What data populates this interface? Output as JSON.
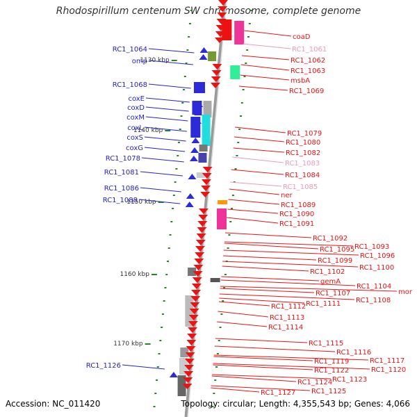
{
  "title": "Rhodospirillum centenum SW chromosome, complete genome",
  "footer": {
    "accession": "Accession: NC_011420",
    "topology": "Topology: circular; Length: 4,355,543 bp; Genes: 4,066"
  },
  "colors": {
    "backbone": "#888888",
    "forward": "#2b2bd8",
    "reverse": "#ee1111",
    "faded": "#ee99bb",
    "tick": "#228822",
    "magenta": "#ee3399",
    "cyan": "#22dddd",
    "mint": "#33ee99",
    "olive": "#779933",
    "orange": "#ff9900"
  },
  "scale_labels": [
    "1130 kbp",
    "1140 kbp",
    "1150 kbp",
    "1160 kbp",
    "1170 kbp"
  ],
  "left_genes": [
    "RC1_1064",
    "omp",
    "RC1_1068",
    "coxE",
    "coxD",
    "coxM",
    "coxL",
    "coxS",
    "coxG",
    "RC1_1078",
    "RC1_1081",
    "RC1_1086",
    "RC1_1088",
    "RC1_1126"
  ],
  "right_genes": [
    {
      "label": "coaD",
      "faded": false
    },
    {
      "label": "RC1_1061",
      "faded": true
    },
    {
      "label": "RC1_1062",
      "faded": false
    },
    {
      "label": "RC1_1063",
      "faded": false
    },
    {
      "label": "msbA",
      "faded": false
    },
    {
      "label": "RC1_1069",
      "faded": false
    },
    {
      "label": "RC1_1079",
      "faded": false
    },
    {
      "label": "RC1_1080",
      "faded": false
    },
    {
      "label": "RC1_1082",
      "faded": false
    },
    {
      "label": "RC1_1083",
      "faded": true
    },
    {
      "label": "RC1_1084",
      "faded": false
    },
    {
      "label": "RC1_1085",
      "faded": true
    },
    {
      "label": "ner",
      "faded": false
    },
    {
      "label": "RC1_1089",
      "faded": false
    },
    {
      "label": "RC1_1090",
      "faded": false
    },
    {
      "label": "RC1_1091",
      "faded": false
    },
    {
      "label": "RC1_1092",
      "faded": false
    },
    {
      "label": "RC1_1093",
      "faded": false
    },
    {
      "label": "RC1_1095",
      "faded": false
    },
    {
      "label": "RC1_1096",
      "faded": false
    },
    {
      "label": "RC1_1099",
      "faded": false
    },
    {
      "label": "RC1_1100",
      "faded": false
    },
    {
      "label": "RC1_1102",
      "faded": false
    },
    {
      "label": "gemA",
      "faded": false
    },
    {
      "label": "RC1_1104",
      "faded": false
    },
    {
      "label": "mor",
      "faded": false
    },
    {
      "label": "RC1_1107",
      "faded": false
    },
    {
      "label": "RC1_1108",
      "faded": false
    },
    {
      "label": "RC1_1111",
      "faded": false
    },
    {
      "label": "RC1_1112",
      "faded": false
    },
    {
      "label": "RC1_1113",
      "faded": false
    },
    {
      "label": "RC1_1114",
      "faded": false
    },
    {
      "label": "RC1_1115",
      "faded": false
    },
    {
      "label": "RC1_1116",
      "faded": false
    },
    {
      "label": "RC1_1117",
      "faded": false
    },
    {
      "label": "RC1_1119",
      "faded": false
    },
    {
      "label": "RC1_1120",
      "faded": false
    },
    {
      "label": "RC1_1122",
      "faded": false
    },
    {
      "label": "RC1_1123",
      "faded": false
    },
    {
      "label": "RC1_1124",
      "faded": false
    },
    {
      "label": "RC1_1125",
      "faded": false
    },
    {
      "label": "RC1_1127",
      "faded": false
    }
  ]
}
